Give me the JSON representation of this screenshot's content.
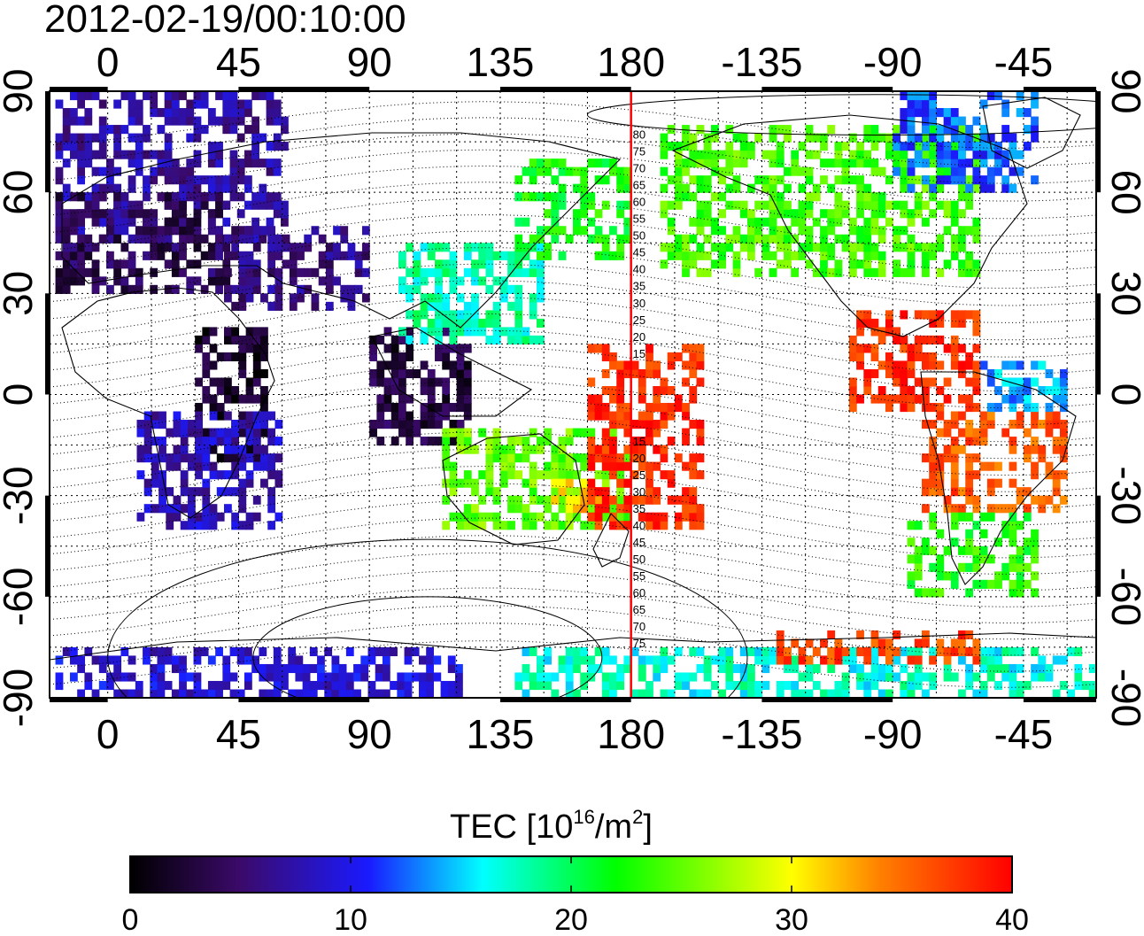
{
  "title": "2012-02-19/00:10:00",
  "lon_ticks": [
    "0",
    "45",
    "90",
    "135",
    "180",
    "-135",
    "-90",
    "-45"
  ],
  "lat_ticks": [
    "90",
    "60",
    "30",
    "0",
    "-30",
    "-60",
    "-90"
  ],
  "colorbar": {
    "label_main": "TEC  [10",
    "label_sup1": "16",
    "label_mid": "/m",
    "label_sup2": "2",
    "label_end": "]",
    "ticks": [
      "0",
      "10",
      "20",
      "30",
      "40"
    ],
    "min": 0,
    "max": 40
  },
  "colors": {
    "meridian_line": "#ff0000",
    "colormap": [
      "#000000",
      "#3b0a6a",
      "#1a1aff",
      "#00ffff",
      "#00ff00",
      "#ffff00",
      "#ff8000",
      "#ff0000"
    ]
  },
  "map_data": {
    "lon_range": [
      -20,
      340
    ],
    "lat_range": [
      -90,
      90
    ],
    "meridian_longitude": 180,
    "magnetic_latitude_labels_north": [
      "80",
      "75",
      "70",
      "65",
      "60",
      "55",
      "50",
      "45",
      "40",
      "35",
      "30",
      "25",
      "20",
      "15"
    ],
    "magnetic_latitude_labels_south": [
      "15",
      "20",
      "25",
      "30",
      "35",
      "40",
      "45",
      "50",
      "55",
      "60",
      "65",
      "70",
      "75"
    ],
    "tec_regions": [
      {
        "lon": [
          -18,
          60
        ],
        "lat": [
          45,
          90
        ],
        "tec": 7
      },
      {
        "lon": [
          -18,
          40
        ],
        "lat": [
          30,
          60
        ],
        "tec": 4
      },
      {
        "lon": [
          40,
          90
        ],
        "lat": [
          25,
          50
        ],
        "tec": 6
      },
      {
        "lon": [
          30,
          55
        ],
        "lat": [
          -20,
          20
        ],
        "tec": 2
      },
      {
        "lon": [
          10,
          60
        ],
        "lat": [
          -40,
          -5
        ],
        "tec": 8
      },
      {
        "lon": [
          90,
          125
        ],
        "lat": [
          -15,
          20
        ],
        "tec": 3
      },
      {
        "lon": [
          100,
          150
        ],
        "lat": [
          15,
          45
        ],
        "tec": 18
      },
      {
        "lon": [
          140,
          180
        ],
        "lat": [
          40,
          70
        ],
        "tec": 22
      },
      {
        "lon": [
          115,
          180
        ],
        "lat": [
          -40,
          -10
        ],
        "tec": 25
      },
      {
        "lon": [
          150,
          175
        ],
        "lat": [
          -35,
          -25
        ],
        "tec": 32
      },
      {
        "lon": [
          165,
          205
        ],
        "lat": [
          -40,
          15
        ],
        "tec": 38
      },
      {
        "lon": [
          190,
          300
        ],
        "lat": [
          35,
          80
        ],
        "tec": 24
      },
      {
        "lon": [
          270,
          320
        ],
        "lat": [
          60,
          90
        ],
        "tec": 12
      },
      {
        "lon": [
          255,
          300
        ],
        "lat": [
          -5,
          25
        ],
        "tec": 38
      },
      {
        "lon": [
          280,
          330
        ],
        "lat": [
          -35,
          -5
        ],
        "tec": 36
      },
      {
        "lon": [
          275,
          320
        ],
        "lat": [
          -60,
          -35
        ],
        "tec": 23
      },
      {
        "lon": [
          300,
          330
        ],
        "lat": [
          -5,
          10
        ],
        "tec": 14
      },
      {
        "lon": [
          -18,
          120
        ],
        "lat": [
          -90,
          -75
        ],
        "tec": 9
      },
      {
        "lon": [
          140,
          340
        ],
        "lat": [
          -90,
          -75
        ],
        "tec": 17
      },
      {
        "lon": [
          230,
          300
        ],
        "lat": [
          -80,
          -70
        ],
        "tec": 37
      }
    ]
  }
}
